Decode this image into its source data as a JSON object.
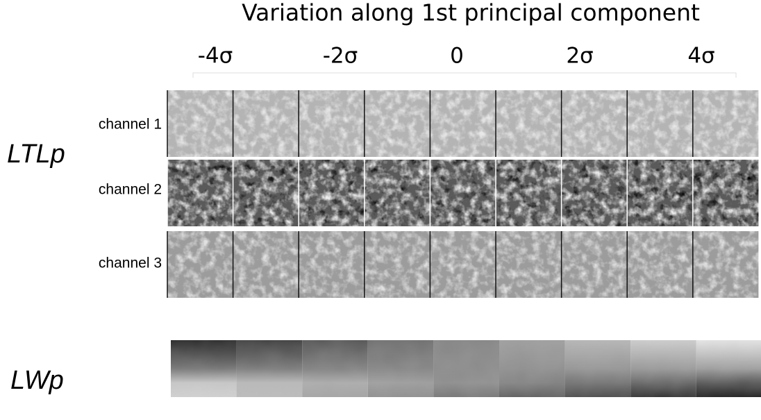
{
  "title": "Variation along 1st principal component",
  "column_labels": [
    "-4σ",
    "-2σ",
    "0",
    "2σ",
    "4σ"
  ],
  "groups": [
    {
      "label": "LTLp",
      "rows": [
        "channel 1",
        "channel 2",
        "channel 3"
      ]
    },
    {
      "label": "LWp"
    }
  ]
}
